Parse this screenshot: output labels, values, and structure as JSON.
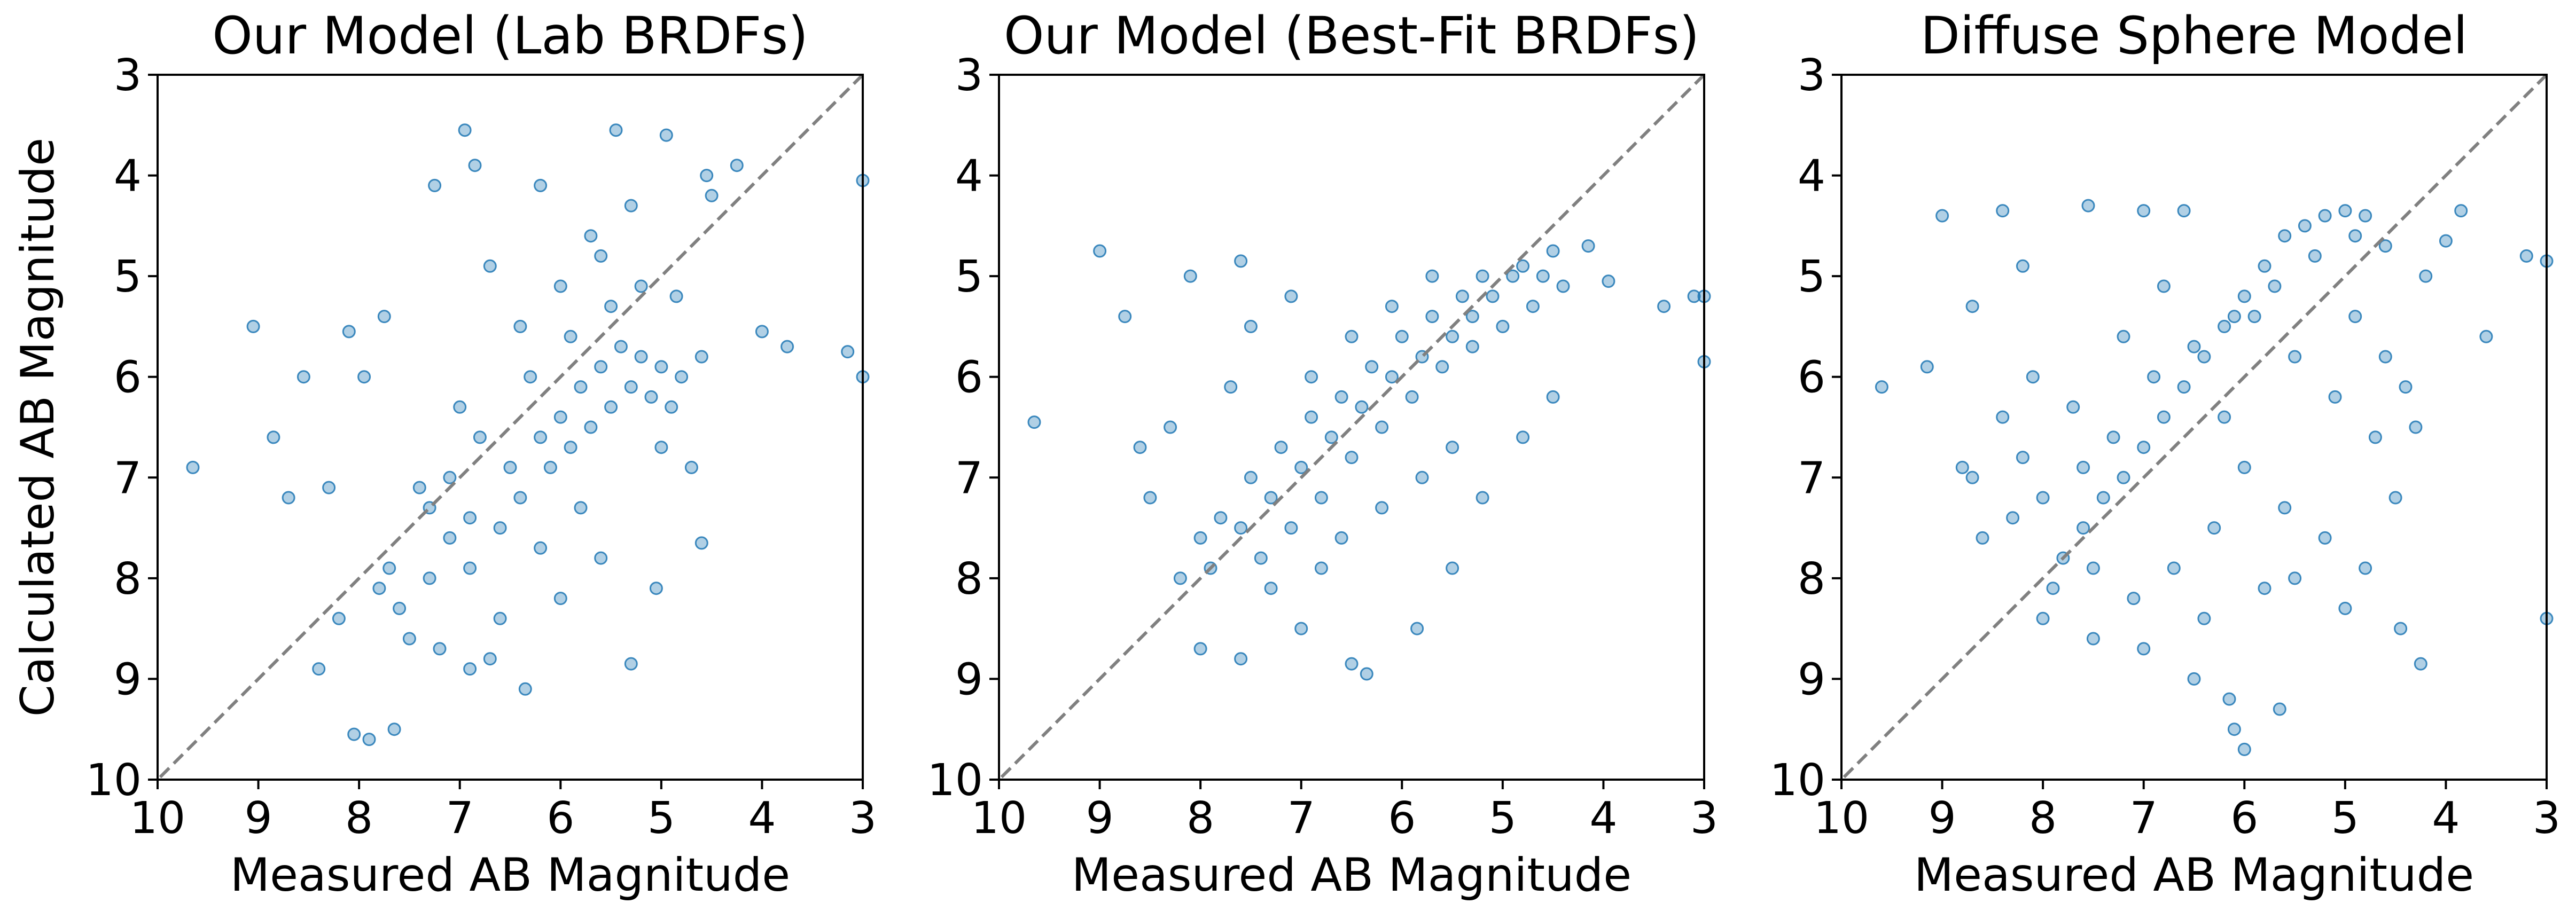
{
  "point_color": "#1f77b4",
  "diagonal_color": "#808080",
  "chart_data": [
    {
      "type": "scatter",
      "title": "Our Model (Lab BRDFs)",
      "xlabel": "Measured AB Magnitude",
      "ylabel": "Calculated AB Magnitude",
      "xlim": [
        10,
        3
      ],
      "ylim": [
        10,
        3
      ],
      "xticks": [
        "10",
        "9",
        "8",
        "7",
        "6",
        "5",
        "4",
        "3"
      ],
      "yticks": [
        "3",
        "4",
        "5",
        "6",
        "7",
        "8",
        "9",
        "10"
      ],
      "diagonal": "y = x, dashed",
      "grid": false,
      "points": [
        [
          9.65,
          6.9
        ],
        [
          9.05,
          5.5
        ],
        [
          8.85,
          6.6
        ],
        [
          8.7,
          7.2
        ],
        [
          8.55,
          6.0
        ],
        [
          8.3,
          7.1
        ],
        [
          8.1,
          5.55
        ],
        [
          7.95,
          6.0
        ],
        [
          7.75,
          5.4
        ],
        [
          7.25,
          4.1
        ],
        [
          6.95,
          3.55
        ],
        [
          6.85,
          3.9
        ],
        [
          6.7,
          4.9
        ],
        [
          5.45,
          3.55
        ],
        [
          4.95,
          3.6
        ],
        [
          4.55,
          4.0
        ],
        [
          4.25,
          3.9
        ],
        [
          3.15,
          5.75
        ],
        [
          3.0,
          4.05
        ],
        [
          3.0,
          6.0
        ],
        [
          3.75,
          5.7
        ],
        [
          4.0,
          5.55
        ],
        [
          8.05,
          9.55
        ],
        [
          7.9,
          9.6
        ],
        [
          7.65,
          9.5
        ],
        [
          6.35,
          9.1
        ],
        [
          6.7,
          8.8
        ],
        [
          5.3,
          8.85
        ],
        [
          5.05,
          8.1
        ],
        [
          4.6,
          7.65
        ],
        [
          4.5,
          4.2
        ],
        [
          5.3,
          4.3
        ],
        [
          6.2,
          4.1
        ],
        [
          5.7,
          4.6
        ],
        [
          4.85,
          5.2
        ],
        [
          7.1,
          7.0
        ],
        [
          7.3,
          7.3
        ],
        [
          6.9,
          7.4
        ],
        [
          6.5,
          6.9
        ],
        [
          6.2,
          6.6
        ],
        [
          6.0,
          6.4
        ],
        [
          5.8,
          6.1
        ],
        [
          5.6,
          5.9
        ],
        [
          5.4,
          5.7
        ],
        [
          5.2,
          5.8
        ],
        [
          5.0,
          5.9
        ],
        [
          4.8,
          6.0
        ],
        [
          4.6,
          5.8
        ],
        [
          7.6,
          8.3
        ],
        [
          7.8,
          8.1
        ],
        [
          7.5,
          8.6
        ],
        [
          7.3,
          8.0
        ],
        [
          7.1,
          7.6
        ],
        [
          6.9,
          7.9
        ],
        [
          6.6,
          7.5
        ],
        [
          6.4,
          7.2
        ],
        [
          6.1,
          6.9
        ],
        [
          5.9,
          6.7
        ],
        [
          5.7,
          6.5
        ],
        [
          5.5,
          6.3
        ],
        [
          5.3,
          6.1
        ],
        [
          5.1,
          6.2
        ],
        [
          4.9,
          6.3
        ],
        [
          6.8,
          6.6
        ],
        [
          6.3,
          6.0
        ],
        [
          5.9,
          5.6
        ],
        [
          5.5,
          5.3
        ],
        [
          5.2,
          5.1
        ],
        [
          6.6,
          8.4
        ],
        [
          6.0,
          8.2
        ],
        [
          5.6,
          7.8
        ],
        [
          6.9,
          8.9
        ],
        [
          7.2,
          8.7
        ],
        [
          4.7,
          6.9
        ],
        [
          5.0,
          6.7
        ],
        [
          6.4,
          5.5
        ],
        [
          6.0,
          5.1
        ],
        [
          5.6,
          4.8
        ],
        [
          8.4,
          8.9
        ],
        [
          8.2,
          8.4
        ],
        [
          7.0,
          6.3
        ],
        [
          6.2,
          7.7
        ],
        [
          5.8,
          7.3
        ],
        [
          7.7,
          7.9
        ],
        [
          7.4,
          7.1
        ]
      ]
    },
    {
      "type": "scatter",
      "title": "Our Model (Best-Fit BRDFs)",
      "xlabel": "Measured AB Magnitude",
      "ylabel": "",
      "xlim": [
        10,
        3
      ],
      "ylim": [
        10,
        3
      ],
      "xticks": [
        "10",
        "9",
        "8",
        "7",
        "6",
        "5",
        "4",
        "3"
      ],
      "yticks": [
        "3",
        "4",
        "5",
        "6",
        "7",
        "8",
        "9",
        "10"
      ],
      "diagonal": "y = x, dashed",
      "grid": false,
      "points": [
        [
          9.65,
          6.45
        ],
        [
          9.0,
          4.75
        ],
        [
          8.75,
          5.4
        ],
        [
          8.6,
          6.7
        ],
        [
          8.5,
          7.2
        ],
        [
          8.1,
          5.0
        ],
        [
          7.6,
          4.85
        ],
        [
          7.1,
          5.2
        ],
        [
          4.5,
          4.75
        ],
        [
          4.15,
          4.7
        ],
        [
          3.95,
          5.05
        ],
        [
          3.1,
          5.2
        ],
        [
          3.0,
          5.2
        ],
        [
          3.0,
          5.85
        ],
        [
          3.4,
          5.3
        ],
        [
          8.0,
          8.7
        ],
        [
          7.6,
          8.8
        ],
        [
          7.0,
          8.5
        ],
        [
          6.5,
          8.85
        ],
        [
          6.35,
          8.95
        ],
        [
          5.85,
          8.5
        ],
        [
          5.5,
          7.9
        ],
        [
          5.2,
          7.2
        ],
        [
          4.8,
          6.6
        ],
        [
          4.5,
          6.2
        ],
        [
          7.9,
          7.9
        ],
        [
          7.6,
          7.5
        ],
        [
          7.3,
          7.2
        ],
        [
          7.0,
          6.9
        ],
        [
          6.7,
          6.6
        ],
        [
          6.4,
          6.3
        ],
        [
          6.1,
          6.0
        ],
        [
          5.8,
          5.8
        ],
        [
          5.5,
          5.6
        ],
        [
          5.3,
          5.4
        ],
        [
          5.1,
          5.2
        ],
        [
          4.9,
          5.0
        ],
        [
          4.8,
          4.9
        ],
        [
          7.8,
          7.4
        ],
        [
          7.5,
          7.0
        ],
        [
          7.2,
          6.7
        ],
        [
          6.9,
          6.4
        ],
        [
          6.6,
          6.2
        ],
        [
          6.3,
          5.9
        ],
        [
          6.0,
          5.6
        ],
        [
          5.7,
          5.4
        ],
        [
          5.4,
          5.2
        ],
        [
          5.2,
          5.0
        ],
        [
          7.4,
          7.8
        ],
        [
          7.1,
          7.5
        ],
        [
          6.8,
          7.2
        ],
        [
          6.5,
          6.8
        ],
        [
          6.2,
          6.5
        ],
        [
          5.9,
          6.2
        ],
        [
          5.6,
          5.9
        ],
        [
          5.3,
          5.7
        ],
        [
          5.0,
          5.5
        ],
        [
          4.7,
          5.3
        ],
        [
          8.2,
          8.0
        ],
        [
          8.0,
          7.6
        ],
        [
          6.6,
          7.6
        ],
        [
          6.2,
          7.3
        ],
        [
          5.8,
          7.0
        ],
        [
          5.5,
          6.7
        ],
        [
          6.9,
          6.0
        ],
        [
          6.5,
          5.6
        ],
        [
          6.1,
          5.3
        ],
        [
          5.7,
          5.0
        ],
        [
          7.3,
          8.1
        ],
        [
          6.8,
          7.9
        ],
        [
          4.6,
          5.0
        ],
        [
          4.4,
          5.1
        ],
        [
          7.7,
          6.1
        ],
        [
          8.3,
          6.5
        ],
        [
          7.5,
          5.5
        ]
      ]
    },
    {
      "type": "scatter",
      "title": "Diffuse Sphere Model",
      "xlabel": "Measured AB Magnitude",
      "ylabel": "",
      "xlim": [
        10,
        3
      ],
      "ylim": [
        10,
        3
      ],
      "xticks": [
        "10",
        "9",
        "8",
        "7",
        "6",
        "5",
        "4",
        "3"
      ],
      "yticks": [
        "3",
        "4",
        "5",
        "6",
        "7",
        "8",
        "9",
        "10"
      ],
      "diagonal": "y = x, dashed",
      "grid": false,
      "points": [
        [
          9.6,
          6.1
        ],
        [
          9.0,
          4.4
        ],
        [
          8.7,
          5.3
        ],
        [
          8.4,
          4.35
        ],
        [
          8.2,
          4.9
        ],
        [
          7.55,
          4.3
        ],
        [
          7.0,
          4.35
        ],
        [
          6.6,
          4.35
        ],
        [
          4.0,
          4.65
        ],
        [
          3.85,
          4.35
        ],
        [
          3.2,
          4.8
        ],
        [
          3.0,
          4.85
        ],
        [
          3.0,
          8.4
        ],
        [
          3.6,
          5.6
        ],
        [
          4.2,
          5.0
        ],
        [
          6.1,
          9.5
        ],
        [
          6.0,
          9.7
        ],
        [
          6.15,
          9.2
        ],
        [
          5.65,
          9.3
        ],
        [
          4.25,
          8.85
        ],
        [
          4.45,
          8.5
        ],
        [
          5.0,
          8.3
        ],
        [
          5.5,
          8.0
        ],
        [
          6.5,
          9.0
        ],
        [
          7.0,
          8.7
        ],
        [
          7.5,
          8.6
        ],
        [
          8.0,
          8.4
        ],
        [
          8.6,
          7.6
        ],
        [
          8.8,
          6.9
        ],
        [
          9.15,
          5.9
        ],
        [
          5.6,
          4.6
        ],
        [
          5.4,
          4.5
        ],
        [
          5.2,
          4.4
        ],
        [
          5.0,
          4.35
        ],
        [
          4.8,
          4.4
        ],
        [
          5.8,
          4.9
        ],
        [
          6.0,
          5.2
        ],
        [
          6.2,
          5.5
        ],
        [
          6.4,
          5.8
        ],
        [
          6.6,
          6.1
        ],
        [
          6.8,
          6.4
        ],
        [
          7.0,
          6.7
        ],
        [
          7.2,
          7.0
        ],
        [
          7.4,
          7.2
        ],
        [
          7.6,
          7.5
        ],
        [
          7.8,
          7.8
        ],
        [
          8.0,
          7.2
        ],
        [
          8.2,
          6.8
        ],
        [
          8.4,
          6.4
        ],
        [
          8.1,
          6.0
        ],
        [
          7.7,
          6.3
        ],
        [
          7.3,
          6.6
        ],
        [
          6.9,
          6.0
        ],
        [
          6.5,
          5.7
        ],
        [
          6.1,
          5.4
        ],
        [
          5.7,
          5.1
        ],
        [
          5.3,
          4.8
        ],
        [
          4.9,
          4.6
        ],
        [
          6.0,
          6.9
        ],
        [
          5.6,
          7.3
        ],
        [
          5.2,
          7.6
        ],
        [
          4.8,
          7.9
        ],
        [
          4.5,
          7.2
        ],
        [
          4.7,
          6.6
        ],
        [
          5.1,
          6.2
        ],
        [
          5.5,
          5.8
        ],
        [
          5.9,
          5.4
        ],
        [
          6.3,
          7.5
        ],
        [
          6.7,
          7.9
        ],
        [
          7.1,
          8.2
        ],
        [
          7.5,
          7.9
        ],
        [
          7.9,
          8.1
        ],
        [
          6.4,
          8.4
        ],
        [
          5.8,
          8.1
        ],
        [
          4.9,
          5.4
        ],
        [
          4.6,
          5.8
        ],
        [
          4.4,
          6.1
        ],
        [
          4.3,
          6.5
        ],
        [
          4.6,
          4.7
        ],
        [
          7.2,
          5.6
        ],
        [
          6.8,
          5.1
        ],
        [
          7.6,
          6.9
        ],
        [
          8.3,
          7.4
        ],
        [
          8.7,
          7.0
        ],
        [
          6.2,
          6.4
        ]
      ]
    }
  ]
}
